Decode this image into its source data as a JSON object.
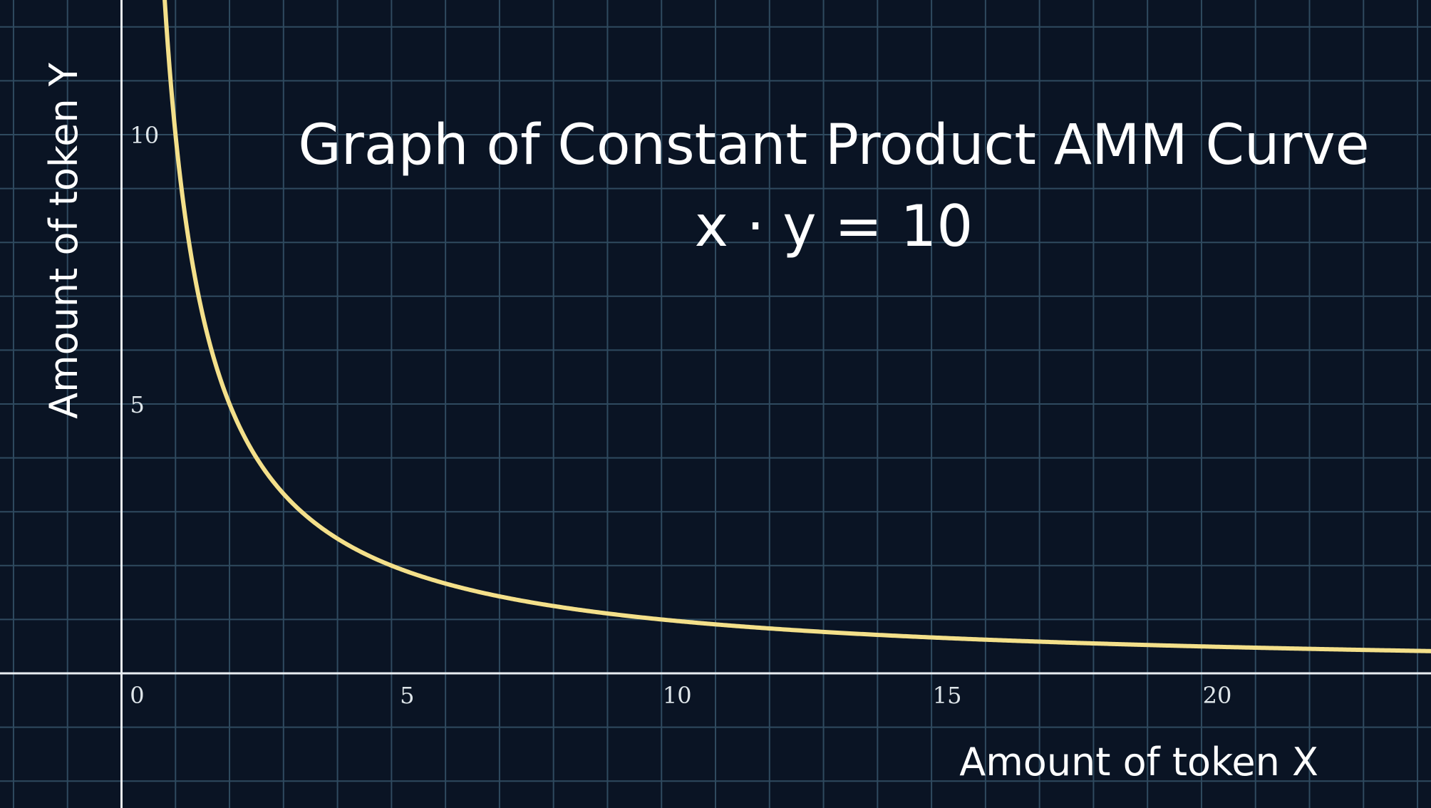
{
  "chart_data": {
    "type": "line",
    "title": "Graph of Constant Product AMM Curve",
    "equation": "x · y = 10",
    "xlabel": "Amount of token X",
    "ylabel": "Amount of token Y",
    "xlim": [
      -2.25,
      24.25
    ],
    "ylim": [
      -2.5,
      12.5
    ],
    "x_ticks": [
      "0",
      "5",
      "10",
      "15",
      "20"
    ],
    "y_ticks": [
      "5",
      "10"
    ],
    "grid": true,
    "series": [
      {
        "function": "y = 10 / x",
        "color": "#f4e08a",
        "x_start": 0.8,
        "x_end": 24.25
      }
    ],
    "colors": {
      "background": "#0a1424",
      "grid": "#2f4a5f",
      "axes": "#e9eef2",
      "curve": "#f4e08a"
    }
  }
}
